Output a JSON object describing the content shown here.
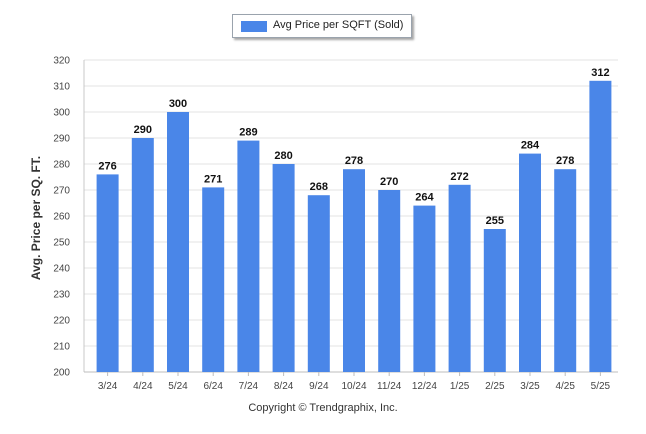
{
  "chart_data": {
    "type": "bar",
    "categories": [
      "3/24",
      "4/24",
      "5/24",
      "6/24",
      "7/24",
      "8/24",
      "9/24",
      "10/24",
      "11/24",
      "12/24",
      "1/25",
      "2/25",
      "3/25",
      "4/25",
      "5/25"
    ],
    "series": [
      {
        "name": "Avg Price per SQFT (Sold)",
        "values": [
          276,
          290,
          300,
          271,
          289,
          280,
          268,
          278,
          270,
          264,
          272,
          255,
          284,
          278,
          312
        ]
      }
    ],
    "ylabel": "Avg. Price per SQ. FT.",
    "xlabel": "",
    "ylim": [
      200,
      320
    ],
    "yticks": [
      200,
      210,
      220,
      230,
      240,
      250,
      260,
      270,
      280,
      290,
      300,
      310,
      320
    ],
    "grid": true,
    "legend_position": "top-center",
    "bar_color": "#4a86e8"
  },
  "footer": "Copyright © Trendgraphix, Inc."
}
